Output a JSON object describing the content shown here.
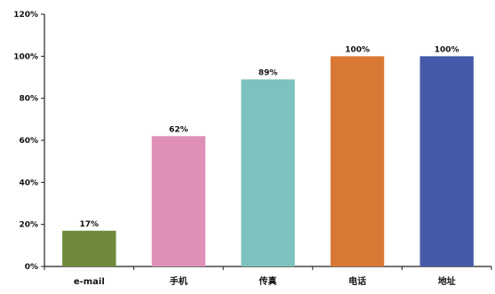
{
  "chart_data": {
    "type": "bar",
    "categories": [
      "e-mail",
      "手机",
      "传真",
      "电话",
      "地址"
    ],
    "values": [
      17,
      62,
      89,
      100,
      100
    ],
    "data_labels": [
      "17%",
      "62%",
      "89%",
      "100%",
      "100%"
    ],
    "colors": [
      "#6e8a3a",
      "#e08fb9",
      "#7cc2be",
      "#d97834",
      "#4459a8"
    ],
    "title": "",
    "xlabel": "",
    "ylabel": "",
    "ylim": [
      0,
      120
    ],
    "yticks": [
      0,
      20,
      40,
      60,
      80,
      100,
      120
    ],
    "ytick_labels": [
      "0%",
      "20%",
      "40%",
      "60%",
      "80%",
      "100%",
      "120%"
    ],
    "grid": false,
    "legend": "none"
  }
}
